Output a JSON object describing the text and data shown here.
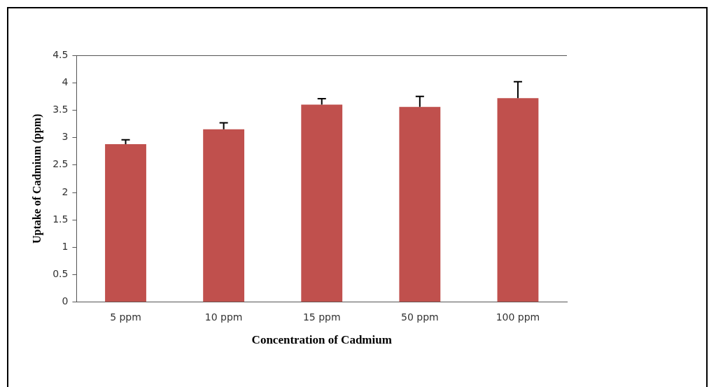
{
  "chart_data": {
    "type": "bar",
    "xlabel": "Concentration of Cadmium",
    "ylabel": "Uptake of Cadmium (ppm)",
    "categories": [
      "5 ppm",
      "10 ppm",
      "15 ppm",
      "50 ppm",
      "100 ppm"
    ],
    "values": [
      2.88,
      3.15,
      3.6,
      3.56,
      3.72
    ],
    "errors": [
      [
        2.88,
        2.96
      ],
      [
        3.15,
        3.27
      ],
      [
        3.6,
        3.71
      ],
      [
        3.56,
        3.75
      ],
      [
        3.72,
        4.02
      ]
    ],
    "color": "#c0504d",
    "ylim": [
      0,
      4.5
    ],
    "yticks": [
      0,
      0.5,
      1,
      1.5,
      2,
      2.5,
      3,
      3.5,
      4,
      4.5
    ],
    "grid": false,
    "legend": false
  }
}
